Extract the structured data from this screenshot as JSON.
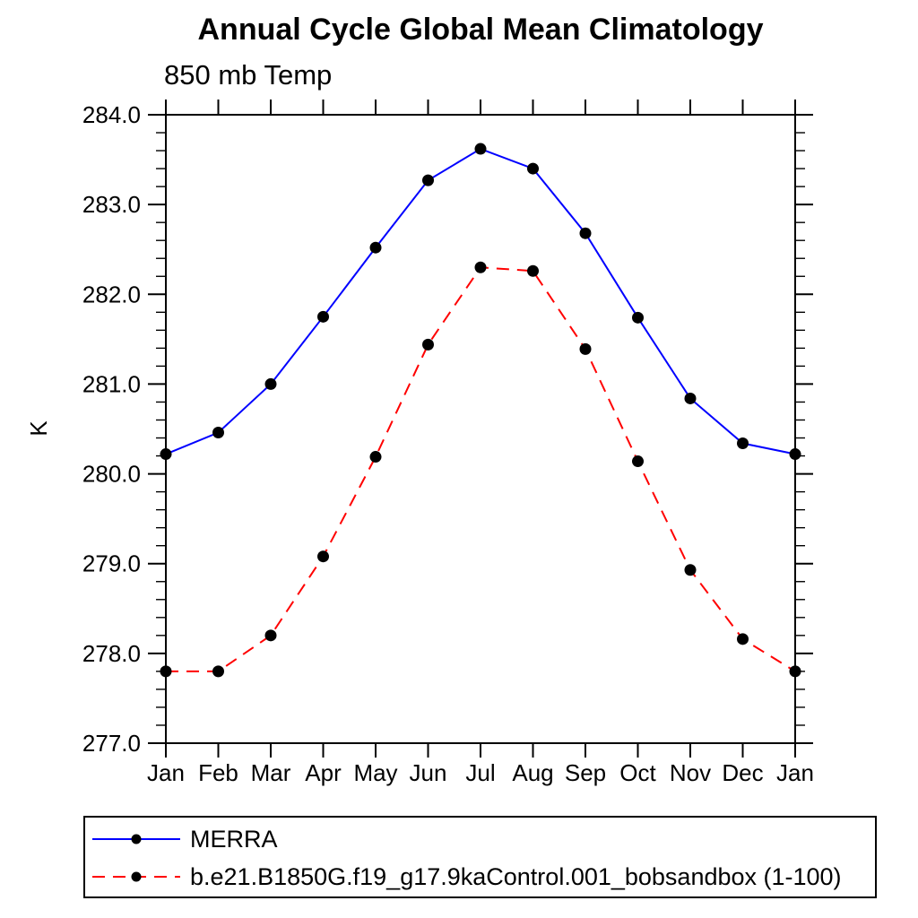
{
  "chart_data": {
    "type": "line",
    "title": "Annual Cycle Global Mean Climatology",
    "subtitle": "850 mb Temp",
    "ylabel": "K",
    "xlabel": "",
    "x_categories": [
      "Jan",
      "Feb",
      "Mar",
      "Apr",
      "May",
      "Jun",
      "Jul",
      "Aug",
      "Sep",
      "Oct",
      "Nov",
      "Dec",
      "Jan"
    ],
    "ylim": [
      277.0,
      284.0
    ],
    "y_major_tick_step": 1.0,
    "y_minor_tick_step": 0.2,
    "y_tick_labels": [
      "277.0",
      "278.0",
      "279.0",
      "280.0",
      "281.0",
      "282.0",
      "283.0",
      "284.0"
    ],
    "grid": false,
    "frame": "full-box-outward-ticks",
    "legend_position": "bottom-left-box",
    "marker_color": "#000000",
    "series": [
      {
        "name": "MERRA",
        "color": "#0000ff",
        "line_style": "solid",
        "marker": "filled-circle",
        "values": [
          280.22,
          280.46,
          281.0,
          281.75,
          282.52,
          283.27,
          283.62,
          283.4,
          282.68,
          281.74,
          280.84,
          280.34,
          280.22
        ]
      },
      {
        "name": "b.e21.B1850G.f19_g17.9kaControl.001_bobsandbox (1-100)",
        "color": "#ff0000",
        "line_style": "dashed",
        "marker": "filled-circle",
        "values": [
          277.8,
          277.8,
          278.2,
          279.08,
          280.19,
          281.44,
          282.3,
          282.26,
          281.39,
          280.14,
          278.93,
          278.16,
          277.8
        ]
      }
    ]
  }
}
